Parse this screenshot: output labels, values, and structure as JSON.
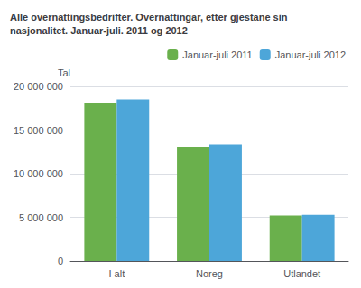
{
  "chart_data": {
    "type": "bar",
    "title": "Alle overnattingsbedrifter. Overnattingar, etter gjestane sin\nnasjonalitet. Januar-juli. 2011 og 2012",
    "ylabel": "Tal",
    "categories": [
      "I alt",
      "Noreg",
      "Utlandet"
    ],
    "series": [
      {
        "name": "Januar-juli 2011",
        "color": "#6ab04c",
        "values": [
          18100000,
          13100000,
          5200000
        ]
      },
      {
        "name": "Januar-juli 2012",
        "color": "#4da6d9",
        "values": [
          18500000,
          13350000,
          5280000
        ]
      }
    ],
    "ylim": [
      0,
      20000000
    ],
    "yticks": [
      0,
      {
        "value": 5000000,
        "label": "5 000 000"
      },
      {
        "value": 10000000,
        "label": "10 000 000"
      },
      {
        "value": 15000000,
        "label": "15 000 000"
      },
      {
        "value": 20000000,
        "label": "20 000 000"
      }
    ],
    "grid": true,
    "legend": "upper right"
  }
}
